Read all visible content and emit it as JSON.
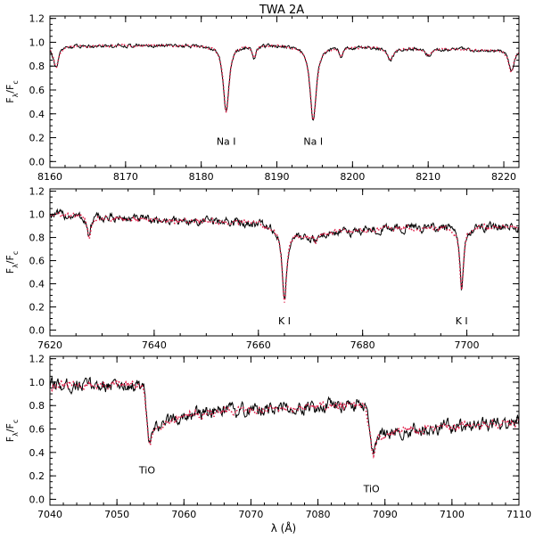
{
  "figure": {
    "title": "TWA 2A",
    "xlabel": "λ (Å)",
    "observed_color": "#000000",
    "model_color": "#e0204a"
  },
  "chart_data": [
    {
      "type": "line",
      "ylabel": "F",
      "ylabel_sub": "λ",
      "ylabel_denom": "/F",
      "ylabel_denom_sub": "c",
      "xlim": [
        8160,
        8222
      ],
      "ylim": [
        -0.05,
        1.22
      ],
      "xticks": [
        8160,
        8170,
        8180,
        8190,
        8200,
        8210,
        8220
      ],
      "yticks": [
        0.0,
        0.2,
        0.4,
        0.6,
        0.8,
        1.0,
        1.2
      ],
      "continuum": [
        [
          8160,
          0.97
        ],
        [
          8190,
          0.98
        ],
        [
          8222,
          0.93
        ]
      ],
      "lines": [
        {
          "x": 8160.8,
          "depth": 0.18,
          "width": 0.4
        },
        {
          "x": 8183.3,
          "depth": 0.56,
          "width": 0.45
        },
        {
          "x": 8187.0,
          "depth": 0.1,
          "width": 0.3
        },
        {
          "x": 8194.8,
          "depth": 0.63,
          "width": 0.5
        },
        {
          "x": 8198.5,
          "depth": 0.08,
          "width": 0.3
        },
        {
          "x": 8205.0,
          "depth": 0.1,
          "width": 0.5
        },
        {
          "x": 8210.0,
          "depth": 0.06,
          "width": 0.5
        },
        {
          "x": 8221.0,
          "depth": 0.18,
          "width": 0.4
        }
      ],
      "noise": 0.012,
      "annotations": [
        {
          "text": "Na I",
          "x": 8183.3,
          "y": 0.14
        },
        {
          "text": "Na I",
          "x": 8194.8,
          "y": 0.14
        }
      ],
      "series": [
        {
          "role": "observed"
        },
        {
          "role": "model"
        }
      ]
    },
    {
      "type": "line",
      "ylabel": "F",
      "ylabel_sub": "λ",
      "ylabel_denom": "/F",
      "ylabel_denom_sub": "c",
      "xlim": [
        7620,
        7710
      ],
      "ylim": [
        -0.05,
        1.22
      ],
      "xticks": [
        7620,
        7640,
        7660,
        7680,
        7700
      ],
      "yticks": [
        0.0,
        0.2,
        0.4,
        0.6,
        0.8,
        1.0,
        1.2
      ],
      "continuum": [
        [
          7620,
          1.0
        ],
        [
          7640,
          0.95
        ],
        [
          7660,
          0.93
        ],
        [
          7668,
          0.82
        ],
        [
          7685,
          0.88
        ],
        [
          7700,
          0.9
        ],
        [
          7710,
          0.88
        ]
      ],
      "lines": [
        {
          "x": 7627.5,
          "depth": 0.18,
          "width": 0.4
        },
        {
          "x": 7665.0,
          "depth": 0.62,
          "width": 0.5
        },
        {
          "x": 7671.0,
          "depth": 0.07,
          "width": 0.5
        },
        {
          "x": 7699.0,
          "depth": 0.55,
          "width": 0.45
        }
      ],
      "noise": 0.03,
      "annotations": [
        {
          "text": "K I",
          "x": 7665.0,
          "y": 0.05
        },
        {
          "text": "K I",
          "x": 7699.0,
          "y": 0.05
        }
      ],
      "series": [
        {
          "role": "observed"
        },
        {
          "role": "model"
        }
      ]
    },
    {
      "type": "line",
      "ylabel": "F",
      "ylabel_sub": "λ",
      "ylabel_denom": "/F",
      "ylabel_denom_sub": "c",
      "xlim": [
        7040,
        7110
      ],
      "ylim": [
        -0.05,
        1.22
      ],
      "xticks": [
        7040,
        7050,
        7060,
        7070,
        7080,
        7090,
        7100,
        7110
      ],
      "yticks": [
        0.0,
        0.2,
        0.4,
        0.6,
        0.8,
        1.0,
        1.2
      ],
      "continuum": [
        [
          7040,
          0.97
        ],
        [
          7054,
          0.98
        ],
        [
          7055,
          0.62
        ],
        [
          7060,
          0.72
        ],
        [
          7065,
          0.74
        ],
        [
          7080,
          0.8
        ],
        [
          7087,
          0.8
        ],
        [
          7088.5,
          0.55
        ],
        [
          7095,
          0.6
        ],
        [
          7110,
          0.66
        ]
      ],
      "lines": [
        {
          "x": 7054.8,
          "depth": 0.22,
          "width": 0.4
        },
        {
          "x": 7088.2,
          "depth": 0.22,
          "width": 0.4
        }
      ],
      "noise": 0.045,
      "annotations": [
        {
          "text": "TiO",
          "x": 7054.5,
          "y": 0.22
        },
        {
          "text": "TiO",
          "x": 7088.0,
          "y": 0.06
        }
      ],
      "series": [
        {
          "role": "observed"
        },
        {
          "role": "model"
        }
      ]
    }
  ]
}
